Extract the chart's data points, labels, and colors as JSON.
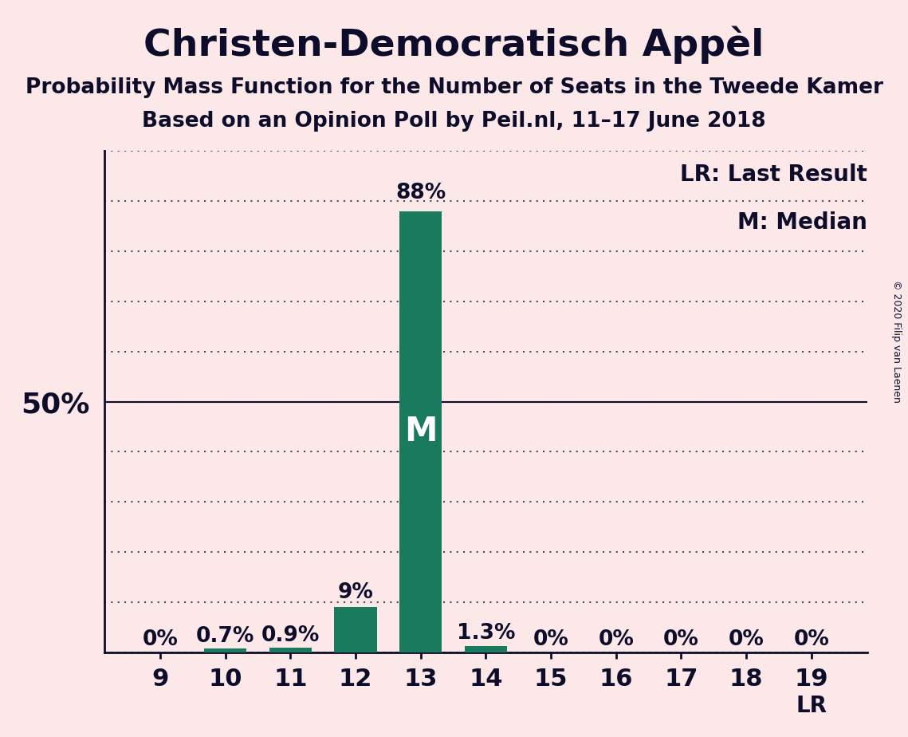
{
  "title": "Christen-Democratisch Appèl",
  "subtitle1": "Probability Mass Function for the Number of Seats in the Tweede Kamer",
  "subtitle2": "Based on an Opinion Poll by Peil.nl, 11–17 June 2018",
  "copyright": "© 2020 Filip van Laenen",
  "categories": [
    9,
    10,
    11,
    12,
    13,
    14,
    15,
    16,
    17,
    18,
    19
  ],
  "values": [
    0.0,
    0.7,
    0.9,
    9.0,
    88.0,
    1.3,
    0.0,
    0.0,
    0.0,
    0.0,
    0.0
  ],
  "bar_labels": [
    "0%",
    "0.7%",
    "0.9%",
    "9%",
    "88%",
    "1.3%",
    "0%",
    "0%",
    "0%",
    "0%",
    "0%"
  ],
  "bar_color": "#1a7a5e",
  "background_color": "#fce8e8",
  "text_color": "#0d0d2b",
  "median_category": 13,
  "last_result_category": 19,
  "ylim": [
    0,
    100
  ],
  "yticks": [
    0,
    10,
    20,
    30,
    40,
    50,
    60,
    70,
    80,
    90,
    100
  ],
  "legend_lr": "LR: Last Result",
  "legend_m": "M: Median",
  "grid_color": "#333333",
  "title_fontsize": 34,
  "subtitle_fontsize": 19,
  "bar_label_fontsize": 19,
  "axis_tick_fontsize": 22,
  "ytick_fontsize": 26,
  "legend_fontsize": 20,
  "median_label_fontsize": 30,
  "lr_fontsize": 20,
  "copyright_fontsize": 9
}
